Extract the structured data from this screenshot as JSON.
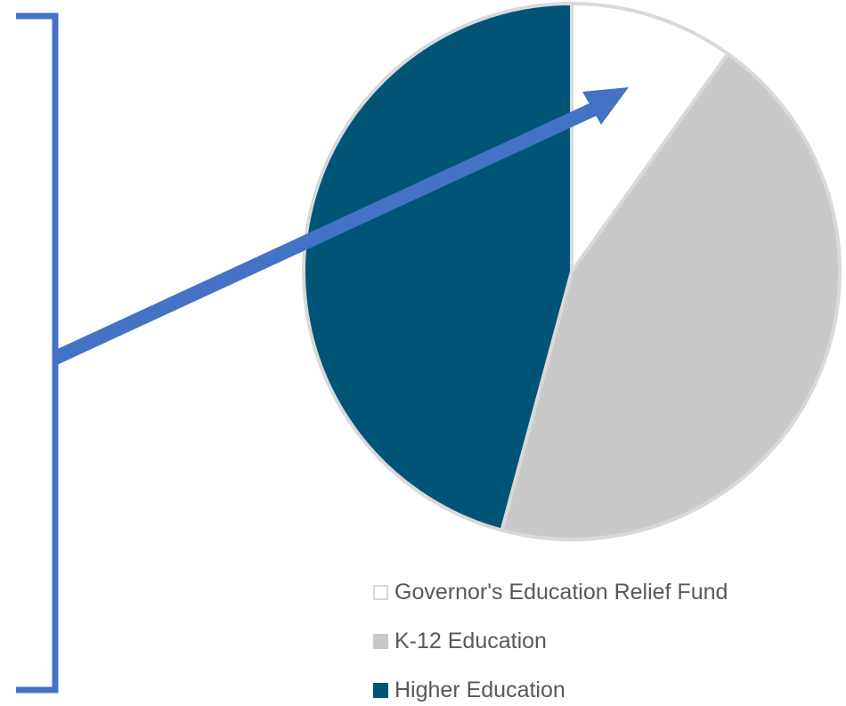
{
  "chart_data": {
    "type": "pie",
    "title": "",
    "start": "12 o'clock",
    "direction": "clockwise",
    "slices": [
      {
        "name": "Governor's Education Relief Fund",
        "value": 9.9,
        "color": "#ffffff"
      },
      {
        "name": "K-12 Education",
        "value": 44.3,
        "color": "#c9c9c9"
      },
      {
        "name": "Higher Education",
        "value": 45.8,
        "color": "#005577"
      }
    ],
    "slice_border_color": "#d9d9d9",
    "legend": {
      "position": "bottom",
      "entries": [
        "Governor's Education Relief Fund",
        "K-12 Education",
        "Higher Education"
      ]
    }
  },
  "annotation": {
    "bracket_color": "#4472c4",
    "arrow_color": "#4472c4"
  }
}
